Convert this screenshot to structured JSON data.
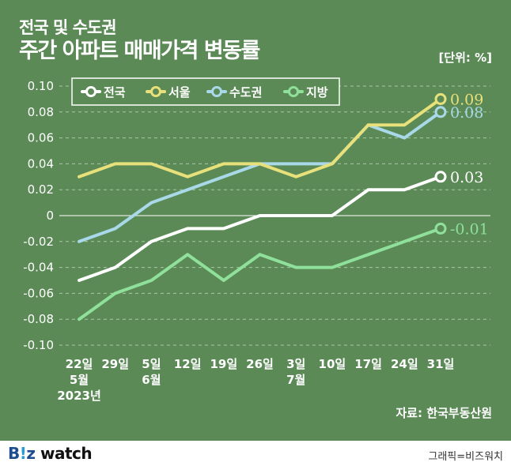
{
  "header": {
    "title_line1": "전국 및 수도권",
    "title_line2": "주간 아파트 매매가격 변동률",
    "unit": "[단위: %]"
  },
  "footer": {
    "source": "자료: 한국부동산원",
    "logo_b": "B",
    "logo_i": "!",
    "logo_z": "z",
    "logo_watch": " watch",
    "credit": "그래픽=비즈워치"
  },
  "chart_data": {
    "type": "line",
    "x": [
      "5/22",
      "5/29",
      "6/5",
      "6/12",
      "6/19",
      "6/26",
      "7/3",
      "7/10",
      "7/17",
      "7/24",
      "7/31"
    ],
    "x_tick_labels": [
      {
        "day": "22일",
        "month": "5월",
        "year": "2023년"
      },
      {
        "day": "29일",
        "month": "",
        "year": ""
      },
      {
        "day": "5일",
        "month": "6월",
        "year": ""
      },
      {
        "day": "12일",
        "month": "",
        "year": ""
      },
      {
        "day": "19일",
        "month": "",
        "year": ""
      },
      {
        "day": "26일",
        "month": "",
        "year": ""
      },
      {
        "day": "3일",
        "month": "7월",
        "year": ""
      },
      {
        "day": "10일",
        "month": "",
        "year": ""
      },
      {
        "day": "17일",
        "month": "",
        "year": ""
      },
      {
        "day": "24일",
        "month": "",
        "year": ""
      },
      {
        "day": "31일",
        "month": "",
        "year": ""
      }
    ],
    "ylim": [
      -0.1,
      0.1
    ],
    "y_ticks": [
      {
        "value": 0.1,
        "label": "0.10"
      },
      {
        "value": 0.08,
        "label": "0.08"
      },
      {
        "value": 0.06,
        "label": "0.06"
      },
      {
        "value": 0.04,
        "label": "0.04"
      },
      {
        "value": 0.02,
        "label": "0.02"
      },
      {
        "value": 0,
        "label": "0"
      },
      {
        "value": -0.02,
        "label": "-0.02"
      },
      {
        "value": -0.04,
        "label": "-0.04"
      },
      {
        "value": -0.06,
        "label": "-0.06"
      },
      {
        "value": -0.08,
        "label": "-0.08"
      },
      {
        "value": -0.1,
        "label": "-0.10"
      }
    ],
    "grid": true,
    "legend_position": "top-left",
    "series": [
      {
        "name": "전국",
        "color": "#ffffff",
        "values": [
          -0.05,
          -0.04,
          -0.02,
          -0.01,
          -0.01,
          0.0,
          0.0,
          0.0,
          0.02,
          0.02,
          0.03
        ],
        "end_label": "0.03"
      },
      {
        "name": "서울",
        "color": "#e8e07a",
        "values": [
          0.03,
          0.04,
          0.04,
          0.03,
          0.04,
          0.04,
          0.03,
          0.04,
          0.07,
          0.07,
          0.09
        ],
        "end_label": "0.09"
      },
      {
        "name": "수도권",
        "color": "#a9d8e8",
        "values": [
          -0.02,
          -0.01,
          0.01,
          0.02,
          0.03,
          0.04,
          0.04,
          0.04,
          0.07,
          0.06,
          0.08
        ],
        "end_label": "0.08"
      },
      {
        "name": "지방",
        "color": "#8fe09a",
        "values": [
          -0.08,
          -0.06,
          -0.05,
          -0.03,
          -0.05,
          -0.03,
          -0.04,
          -0.04,
          -0.03,
          -0.02,
          -0.01
        ],
        "end_label": "-0.01"
      }
    ]
  }
}
